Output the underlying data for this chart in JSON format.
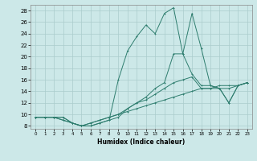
{
  "xlabel": "Humidex (Indice chaleur)",
  "bg_color": "#cce8e8",
  "grid_color": "#aacccc",
  "line_color": "#2e7d6e",
  "xlim": [
    -0.5,
    23.5
  ],
  "ylim": [
    7.5,
    29
  ],
  "xticks": [
    0,
    1,
    2,
    3,
    4,
    5,
    6,
    7,
    8,
    9,
    10,
    11,
    12,
    13,
    14,
    15,
    16,
    17,
    18,
    19,
    20,
    21,
    22,
    23
  ],
  "yticks": [
    8,
    10,
    12,
    14,
    16,
    18,
    20,
    22,
    24,
    26,
    28
  ],
  "line1_x": [
    0,
    1,
    2,
    3,
    4,
    5,
    6,
    7,
    8,
    9,
    10,
    11,
    12,
    13,
    14,
    15,
    16,
    17,
    18,
    19,
    20,
    21,
    22,
    23
  ],
  "line1_y": [
    9.5,
    9.5,
    9.5,
    9.0,
    8.5,
    8.0,
    8.0,
    8.5,
    9.0,
    9.5,
    11.0,
    12.0,
    13.0,
    14.5,
    15.5,
    20.5,
    20.5,
    17.0,
    15.0,
    15.0,
    14.5,
    12.0,
    15.0,
    15.5
  ],
  "line2_x": [
    0,
    1,
    2,
    3,
    4,
    5,
    6,
    7,
    8,
    9,
    10,
    11,
    12,
    13,
    14,
    15,
    16,
    17,
    18,
    19,
    20,
    21,
    22,
    23
  ],
  "line2_y": [
    9.5,
    9.5,
    9.5,
    9.0,
    8.5,
    8.0,
    8.0,
    8.5,
    9.0,
    16.0,
    21.0,
    23.5,
    25.5,
    24.0,
    27.5,
    28.5,
    20.5,
    27.5,
    21.5,
    15.0,
    14.5,
    12.0,
    15.0,
    15.5
  ],
  "line3_x": [
    0,
    1,
    2,
    3,
    4,
    5,
    6,
    7,
    8,
    9,
    10,
    11,
    12,
    13,
    14,
    15,
    16,
    17,
    18,
    19,
    20,
    21,
    22,
    23
  ],
  "line3_y": [
    9.5,
    9.5,
    9.5,
    9.5,
    8.5,
    8.0,
    8.5,
    9.0,
    9.5,
    10.0,
    11.0,
    12.0,
    12.5,
    13.5,
    14.5,
    15.5,
    16.0,
    16.5,
    14.5,
    14.5,
    14.5,
    14.5,
    15.0,
    15.5
  ],
  "line4_x": [
    0,
    1,
    2,
    3,
    4,
    5,
    6,
    7,
    8,
    9,
    10,
    11,
    12,
    13,
    14,
    15,
    16,
    17,
    18,
    19,
    20,
    21,
    22,
    23
  ],
  "line4_y": [
    9.5,
    9.5,
    9.5,
    9.5,
    8.5,
    8.0,
    8.5,
    9.0,
    9.5,
    10.0,
    10.5,
    11.0,
    11.5,
    12.0,
    12.5,
    13.0,
    13.5,
    14.0,
    14.5,
    14.5,
    15.0,
    15.0,
    15.0,
    15.5
  ]
}
